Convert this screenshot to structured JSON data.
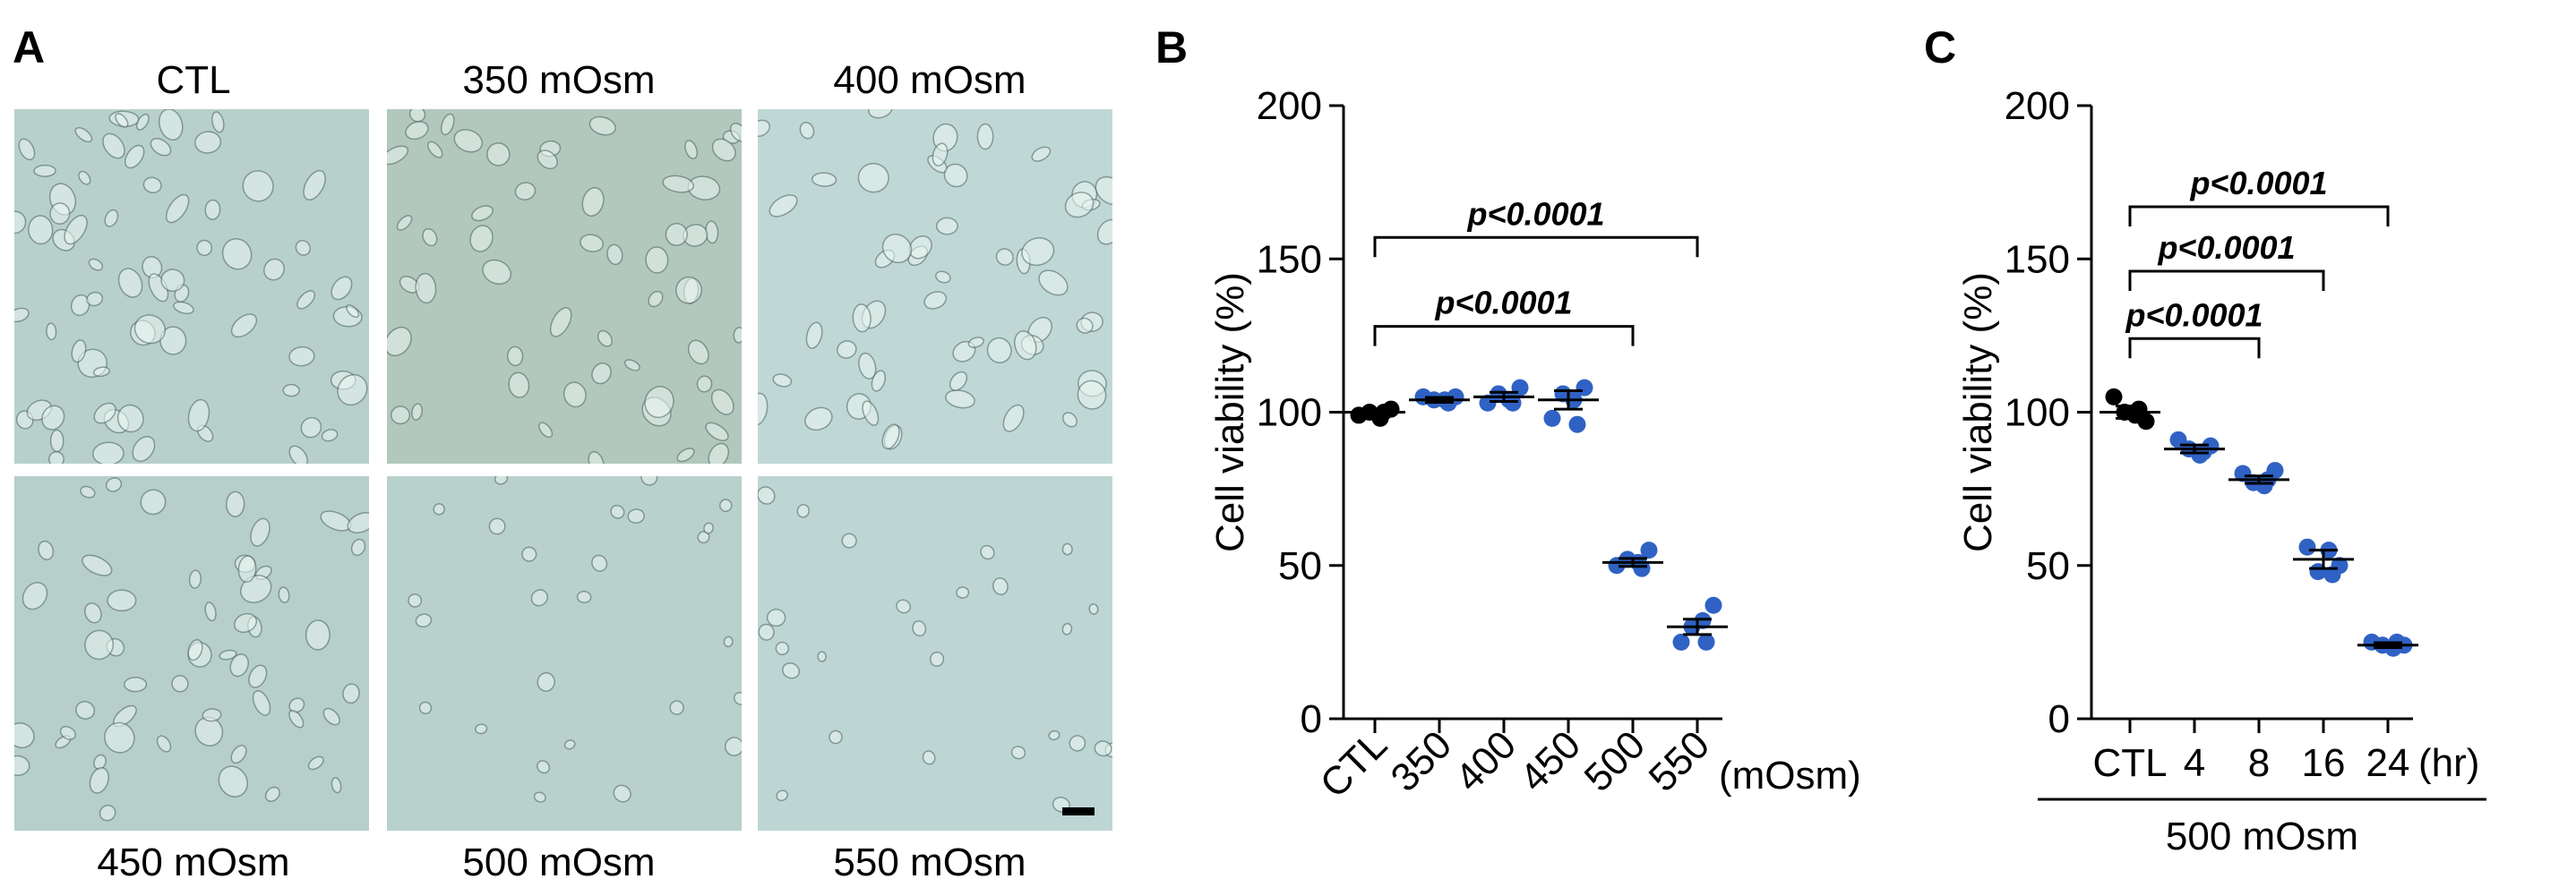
{
  "figure": {
    "panel_a": {
      "letter": "A",
      "images": [
        {
          "label": "CTL",
          "tint": "#b8d0cc",
          "cells": "dense"
        },
        {
          "label": "350 mOsm",
          "tint": "#b2c8bd",
          "cells": "medium"
        },
        {
          "label": "400 mOsm",
          "tint": "#c0d8d5",
          "cells": "medium"
        },
        {
          "label": "450 mOsm",
          "tint": "#b6cfca",
          "cells": "medium"
        },
        {
          "label": "500 mOsm",
          "tint": "#b9d1cc",
          "cells": "sparse"
        },
        {
          "label": "550 mOsm",
          "tint": "#bdd6d3",
          "cells": "sparse"
        }
      ]
    },
    "panel_b_letter": "B",
    "panel_c_letter": "C"
  },
  "chart_data": [
    {
      "panel": "B",
      "type": "scatter",
      "ylabel": "Cell viability (%)",
      "ylim": [
        0,
        200
      ],
      "yticks": [
        0,
        50,
        100,
        150,
        200
      ],
      "categories": [
        "CTL",
        "350",
        "400",
        "450",
        "500",
        "550"
      ],
      "x_unit_label": "(mOsm)",
      "colors": [
        "#000000",
        "#2f62c4",
        "#2f62c4",
        "#2f62c4",
        "#2f62c4",
        "#2f62c4"
      ],
      "groups": [
        {
          "category": "CTL",
          "mean": 100,
          "sem": 0.8,
          "points": [
            99,
            100,
            98,
            101,
            100
          ]
        },
        {
          "category": "350",
          "mean": 104,
          "sem": 0.8,
          "points": [
            105,
            104,
            104,
            105,
            103
          ]
        },
        {
          "category": "400",
          "mean": 105,
          "sem": 1.5,
          "points": [
            103,
            106,
            104,
            108,
            103
          ]
        },
        {
          "category": "450",
          "mean": 104,
          "sem": 3.0,
          "points": [
            98,
            106,
            104,
            108,
            96
          ]
        },
        {
          "category": "500",
          "mean": 51,
          "sem": 1.3,
          "points": [
            50,
            52,
            51,
            55,
            49
          ]
        },
        {
          "category": "550",
          "mean": 30,
          "sem": 2.5,
          "points": [
            25,
            30,
            32,
            37,
            25
          ]
        }
      ],
      "annotations": [
        {
          "text": "p<0.0001",
          "from": "CTL",
          "to": "550",
          "y": 157
        },
        {
          "text": "p<0.0001",
          "from": "CTL",
          "to": "500",
          "y": 128
        }
      ]
    },
    {
      "panel": "C",
      "type": "scatter",
      "ylabel": "Cell viability (%)",
      "ylim": [
        0,
        200
      ],
      "yticks": [
        0,
        50,
        100,
        150,
        200
      ],
      "categories": [
        "CTL",
        "4",
        "8",
        "16",
        "24"
      ],
      "x_unit_label": "(hr)",
      "group_label": "500 mOsm",
      "colors": [
        "#000000",
        "#2f62c4",
        "#2f62c4",
        "#2f62c4",
        "#2f62c4"
      ],
      "groups": [
        {
          "category": "CTL",
          "mean": 100,
          "sem": 2.0,
          "points": [
            105,
            100,
            99,
            97,
            101
          ]
        },
        {
          "category": "4",
          "mean": 88,
          "sem": 1.3,
          "points": [
            91,
            88,
            86,
            89,
            87
          ]
        },
        {
          "category": "8",
          "mean": 78,
          "sem": 1.2,
          "points": [
            80,
            77,
            76,
            81,
            78
          ]
        },
        {
          "category": "16",
          "mean": 52,
          "sem": 3.0,
          "points": [
            56,
            48,
            55,
            50,
            47
          ]
        },
        {
          "category": "24",
          "mean": 24,
          "sem": 0.8,
          "points": [
            25,
            24,
            23,
            24,
            25
          ]
        }
      ],
      "annotations": [
        {
          "text": "p<0.0001",
          "from": "CTL",
          "to": "24",
          "y": 167
        },
        {
          "text": "p<0.0001",
          "from": "CTL",
          "to": "16",
          "y": 146
        },
        {
          "text": "p<0.0001",
          "from": "CTL",
          "to": "8",
          "y": 124
        }
      ]
    }
  ]
}
